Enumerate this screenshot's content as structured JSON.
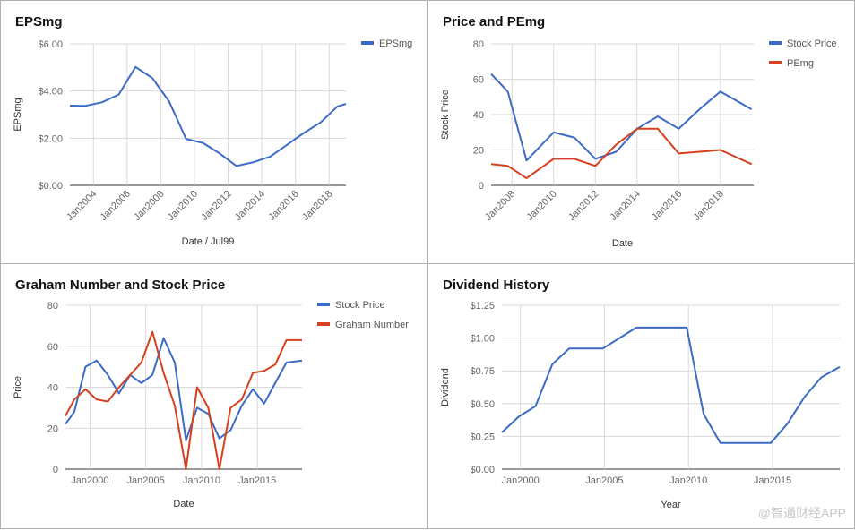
{
  "chart_data": [
    {
      "type": "line",
      "title": "EPSmg",
      "xlabel": "Date / Jul99",
      "ylabel": "EPSmg",
      "ylim": [
        0,
        6
      ],
      "yticks": [
        "$0.00",
        "$2.00",
        "$4.00",
        "$6.00"
      ],
      "ytick_values": [
        0,
        2,
        4,
        6
      ],
      "xlim": [
        2002.6,
        2019.0
      ],
      "xticks": [
        "Jan2004",
        "Jan2006",
        "Jan2008",
        "Jan2010",
        "Jan2012",
        "Jan2014",
        "Jan2016",
        "Jan2018"
      ],
      "xtick_values": [
        2004,
        2006,
        2008,
        2010,
        2012,
        2014,
        2016,
        2018
      ],
      "x_tick_labels_rotated": true,
      "legend": "right",
      "series": [
        {
          "name": "EPSmg",
          "color": "#3c6bc5",
          "x": [
            2002.6,
            2003.5,
            2004.5,
            2005.5,
            2006.5,
            2007.5,
            2008.5,
            2009.5,
            2010.5,
            2011.5,
            2012.5,
            2013.5,
            2014.5,
            2015.5,
            2016.5,
            2017.5,
            2018.5,
            2019.0
          ],
          "values": [
            3.38,
            3.37,
            3.52,
            3.85,
            5.02,
            4.55,
            3.55,
            1.97,
            1.8,
            1.35,
            0.82,
            0.98,
            1.22,
            1.72,
            2.22,
            2.67,
            3.35,
            3.45
          ]
        }
      ]
    },
    {
      "type": "line",
      "title": "Price and PEmg",
      "xlabel": "Date",
      "ylabel": "Stock Price",
      "ylim": [
        0,
        80
      ],
      "yticks": [
        "0",
        "20",
        "40",
        "60",
        "80"
      ],
      "ytick_values": [
        0,
        20,
        40,
        60,
        80
      ],
      "xlim": [
        2007.0,
        2019.6
      ],
      "xticks": [
        "Jan2008",
        "Jan2010",
        "Jan2012",
        "Jan2014",
        "Jan2016",
        "Jan2018"
      ],
      "xtick_values": [
        2008,
        2010,
        2012,
        2014,
        2016,
        2018
      ],
      "x_tick_labels_rotated": true,
      "legend": "right",
      "series": [
        {
          "name": "Stock Price",
          "color": "#3c6bc5",
          "x": [
            2007.0,
            2007.8,
            2008.7,
            2010.0,
            2011.0,
            2012.0,
            2013.0,
            2014.0,
            2015.0,
            2016.0,
            2017.0,
            2018.0,
            2019.5
          ],
          "values": [
            63,
            53,
            14,
            30,
            27,
            15,
            19,
            32,
            39,
            32,
            43,
            53,
            43
          ]
        },
        {
          "name": "PEmg",
          "color": "#d6401c",
          "x": [
            2007.0,
            2007.8,
            2008.7,
            2010.0,
            2011.0,
            2012.0,
            2013.0,
            2014.0,
            2015.0,
            2016.0,
            2017.0,
            2018.0,
            2019.5
          ],
          "values": [
            12,
            11,
            4,
            15,
            15,
            11,
            23,
            32,
            32,
            18,
            19,
            20,
            12
          ]
        }
      ]
    },
    {
      "type": "line",
      "title": "Graham Number and Stock Price",
      "xlabel": "Date",
      "ylabel": "Price",
      "ylim": [
        0,
        80
      ],
      "yticks": [
        "0",
        "20",
        "40",
        "60",
        "80"
      ],
      "ytick_values": [
        0,
        20,
        40,
        60,
        80
      ],
      "xlim": [
        1997.8,
        2019.0
      ],
      "xticks": [
        "Jan2000",
        "Jan2005",
        "Jan2010",
        "Jan2015"
      ],
      "xtick_values": [
        2000,
        2005,
        2010,
        2015
      ],
      "legend": "right",
      "series": [
        {
          "name": "Stock Price",
          "color": "#3c6bc5",
          "x": [
            1997.8,
            1998.6,
            1999.6,
            2000.6,
            2001.6,
            2002.6,
            2003.6,
            2004.6,
            2005.6,
            2006.6,
            2007.6,
            2008.6,
            2009.6,
            2010.6,
            2011.6,
            2012.6,
            2013.6,
            2014.6,
            2015.6,
            2016.6,
            2017.6,
            2019.0
          ],
          "values": [
            22,
            28,
            50,
            53,
            46,
            37,
            46,
            42,
            46,
            64,
            52,
            14,
            30,
            27,
            15,
            19,
            31,
            39,
            32,
            42,
            52,
            53
          ]
        },
        {
          "name": "Graham Number",
          "color": "#d6401c",
          "x": [
            1997.8,
            1998.6,
            1999.6,
            2000.6,
            2001.6,
            2002.6,
            2003.6,
            2004.6,
            2005.6,
            2006.6,
            2007.6,
            2008.6,
            2009.6,
            2010.6,
            2011.6,
            2012.6,
            2013.6,
            2014.6,
            2015.6,
            2016.6,
            2017.6,
            2019.0
          ],
          "values": [
            26,
            34,
            39,
            34,
            33,
            40,
            46,
            52,
            67,
            47,
            31,
            0,
            40,
            30,
            0,
            30,
            34,
            47,
            48,
            51,
            63,
            63
          ]
        }
      ]
    },
    {
      "type": "line",
      "title": "Dividend History",
      "xlabel": "Year",
      "ylabel": "Dividend",
      "ylim": [
        0,
        1.25
      ],
      "yticks": [
        "$0.00",
        "$0.25",
        "$0.50",
        "$0.75",
        "$1.00",
        "$1.25"
      ],
      "ytick_values": [
        0,
        0.25,
        0.5,
        0.75,
        1.0,
        1.25
      ],
      "xlim": [
        1998.9,
        2019.0
      ],
      "xticks": [
        "Jan2000",
        "Jan2005",
        "Jan2010",
        "Jan2015"
      ],
      "xtick_values": [
        2000,
        2005,
        2010,
        2015
      ],
      "series": [
        {
          "name": "Dividend",
          "color": "#3c6bc5",
          "x": [
            1998.9,
            1999.9,
            2000.9,
            2001.9,
            2002.9,
            2003.9,
            2004.9,
            2005.9,
            2006.9,
            2007.9,
            2008.9,
            2009.9,
            2010.9,
            2011.9,
            2012.9,
            2013.9,
            2014.9,
            2015.9,
            2016.9,
            2017.9,
            2019.0
          ],
          "values": [
            0.28,
            0.4,
            0.48,
            0.8,
            0.92,
            0.92,
            0.92,
            1.0,
            1.08,
            1.08,
            1.08,
            1.08,
            0.42,
            0.2,
            0.2,
            0.2,
            0.2,
            0.35,
            0.55,
            0.7,
            0.78
          ]
        }
      ]
    }
  ],
  "watermark": "@智通财经APP"
}
